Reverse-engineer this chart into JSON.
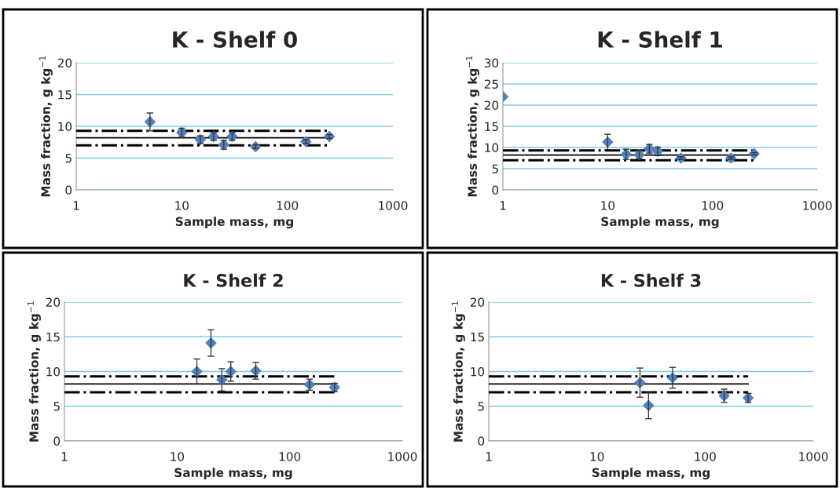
{
  "chart_data": [
    {
      "type": "scatter",
      "title": "K - Shelf 0",
      "xlabel": "Sample mass, mg",
      "ylabel": "Mass fraction, g kg$^{−1}$",
      "log": "x",
      "xlim": [
        1,
        1000
      ],
      "xticks": [
        1,
        10,
        100,
        1000
      ],
      "ylim": [
        0,
        20
      ],
      "yticks": [
        0,
        5,
        10,
        15,
        20
      ],
      "grid": "y",
      "series": [
        {
          "marker": "diamond",
          "color": "#4f81bd",
          "x": [
            5,
            10,
            15,
            20,
            25,
            30,
            50,
            150,
            250
          ],
          "values": [
            10.7,
            9.0,
            7.9,
            8.4,
            7.1,
            8.4,
            6.8,
            7.6,
            8.4
          ],
          "errors": [
            1.4,
            0.7,
            0.6,
            0.6,
            0.7,
            0.6,
            0.3,
            0.3,
            0.3
          ]
        },
        {
          "type": "line",
          "color": "#000000",
          "line_style": "solid",
          "x": [
            1,
            250
          ],
          "values": [
            8.2,
            8.2
          ]
        },
        {
          "type": "line",
          "color": "#000000",
          "line_style": "dashdot",
          "x": [
            1,
            250
          ],
          "values": [
            9.3,
            9.3
          ]
        },
        {
          "type": "line",
          "color": "#000000",
          "line_style": "dashdot",
          "x": [
            1,
            250
          ],
          "values": [
            7.0,
            7.0
          ]
        }
      ]
    },
    {
      "type": "scatter",
      "title": "K - Shelf 1",
      "xlabel": "Sample mass, mg",
      "ylabel": "Mass fraction, g kg$^{−1}$",
      "log": "x",
      "xlim": [
        1,
        1000
      ],
      "xticks": [
        1,
        10,
        100,
        1000
      ],
      "ylim": [
        0,
        30
      ],
      "yticks": [
        0,
        5,
        10,
        15,
        20,
        25,
        30
      ],
      "grid": "y",
      "series": [
        {
          "marker": "diamond",
          "color": "#4f81bd",
          "x": [
            1,
            10,
            15,
            20,
            25,
            30,
            50,
            150,
            250
          ],
          "values": [
            22.0,
            11.3,
            8.4,
            8.3,
            9.7,
            9.1,
            7.5,
            7.5,
            8.5
          ],
          "errors": [
            null,
            1.8,
            1.2,
            1.0,
            1.0,
            1.0,
            0.3,
            0.3,
            0.3
          ]
        },
        {
          "type": "line",
          "color": "#000000",
          "line_style": "solid",
          "x": [
            1,
            250
          ],
          "values": [
            8.2,
            8.2
          ]
        },
        {
          "type": "line",
          "color": "#000000",
          "line_style": "dashdot",
          "x": [
            1,
            250
          ],
          "values": [
            9.3,
            9.3
          ]
        },
        {
          "type": "line",
          "color": "#000000",
          "line_style": "dashdot",
          "x": [
            1,
            250
          ],
          "values": [
            7.0,
            7.0
          ]
        }
      ]
    },
    {
      "type": "scatter",
      "title": "K - Shelf 2",
      "xlabel": "Sample mass, mg",
      "ylabel": "Mass fraction, g kg$^{−1}$",
      "log": "x",
      "xlim": [
        1,
        1000
      ],
      "xticks": [
        1,
        10,
        100,
        1000
      ],
      "ylim": [
        0,
        20
      ],
      "yticks": [
        0,
        5,
        10,
        15,
        20
      ],
      "grid": "y",
      "series": [
        {
          "marker": "diamond",
          "color": "#4f81bd",
          "x": [
            15,
            20,
            25,
            30,
            50,
            150,
            250
          ],
          "values": [
            10.0,
            14.1,
            8.8,
            10.0,
            10.1,
            8.1,
            7.7
          ],
          "errors": [
            1.8,
            1.9,
            1.6,
            1.4,
            1.2,
            0.8,
            0.6
          ]
        },
        {
          "type": "line",
          "color": "#000000",
          "line_style": "solid",
          "x": [
            1,
            250
          ],
          "values": [
            8.2,
            8.2
          ]
        },
        {
          "type": "line",
          "color": "#000000",
          "line_style": "dashdot",
          "x": [
            1,
            250
          ],
          "values": [
            9.3,
            9.3
          ]
        },
        {
          "type": "line",
          "color": "#000000",
          "line_style": "dashdot",
          "x": [
            1,
            250
          ],
          "values": [
            7.0,
            7.0
          ]
        }
      ]
    },
    {
      "type": "scatter",
      "title": "K - Shelf 3",
      "xlabel": "Sample mass, mg",
      "ylabel": "Mass fraction, g kg$^{−1}$",
      "log": "x",
      "xlim": [
        1,
        1000
      ],
      "xticks": [
        1,
        10,
        100,
        1000
      ],
      "ylim": [
        0,
        20
      ],
      "yticks": [
        0,
        5,
        10,
        15,
        20
      ],
      "grid": "y",
      "series": [
        {
          "marker": "diamond",
          "color": "#4f81bd",
          "x": [
            25,
            30,
            50,
            150,
            250
          ],
          "values": [
            8.4,
            5.1,
            9.1,
            6.5,
            6.2
          ],
          "errors": [
            2.1,
            1.9,
            1.5,
            0.95,
            0.65
          ]
        },
        {
          "type": "line",
          "color": "#000000",
          "line_style": "solid",
          "x": [
            1,
            250
          ],
          "values": [
            8.2,
            8.2
          ]
        },
        {
          "type": "line",
          "color": "#000000",
          "line_style": "dashdot",
          "x": [
            1,
            250
          ],
          "values": [
            9.3,
            9.3
          ]
        },
        {
          "type": "line",
          "color": "#000000",
          "line_style": "dashdot",
          "x": [
            1,
            250
          ],
          "values": [
            7.0,
            7.0
          ]
        }
      ]
    }
  ]
}
